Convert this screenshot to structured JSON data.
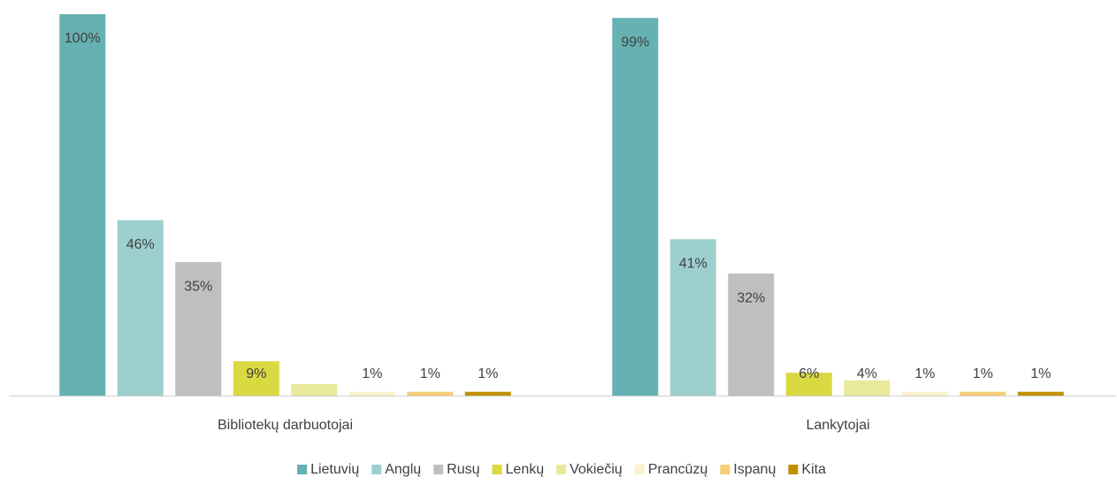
{
  "chart_data": {
    "type": "bar",
    "categories": [
      "Bibliotekų darbuotojai",
      "Lankytojai"
    ],
    "series": [
      {
        "name": "Lietuvių",
        "color": "#66b1b1",
        "values": [
          100,
          99
        ],
        "value_labels": [
          "100%",
          "99%"
        ]
      },
      {
        "name": "Anglų",
        "color": "#9dcfcf",
        "values": [
          46,
          41
        ],
        "value_labels": [
          "46%",
          "41%"
        ]
      },
      {
        "name": "Rusų",
        "color": "#bfbfbf",
        "values": [
          35,
          32
        ],
        "value_labels": [
          "35%",
          "32%"
        ]
      },
      {
        "name": "Lenkų",
        "color": "#d9d941",
        "values": [
          9,
          6
        ],
        "value_labels": [
          "9%",
          "6%"
        ]
      },
      {
        "name": "Vokiečių",
        "color": "#e9e99b",
        "values": [
          3,
          4
        ],
        "value_labels": [
          null,
          "4%"
        ]
      },
      {
        "name": "Prancūzų",
        "color": "#fdf1cc",
        "values": [
          1,
          1
        ],
        "value_labels": [
          "1%",
          "1%"
        ]
      },
      {
        "name": "Ispanų",
        "color": "#f7cd77",
        "values": [
          1,
          1
        ],
        "value_labels": [
          "1%",
          "1%"
        ]
      },
      {
        "name": "Kita",
        "color": "#bf9000",
        "values": [
          1,
          1
        ],
        "value_labels": [
          "1%",
          "1%"
        ]
      }
    ],
    "ylim": [
      0,
      100
    ]
  }
}
